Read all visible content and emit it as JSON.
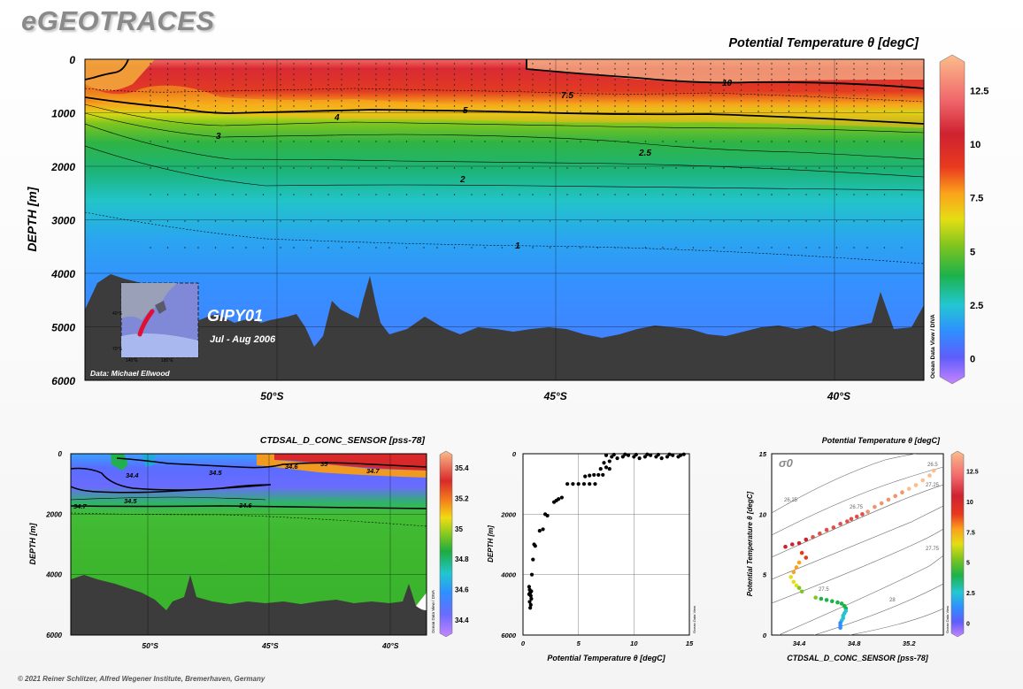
{
  "brand": "eGEOTRACES",
  "credit": "© 2021 Reiner Schlitzer, Alfred Wegener Institute, Bremerhaven, Germany",
  "colors": {
    "bathymetry": "#3c3c3c",
    "contour": "#000000"
  },
  "chart_data": [
    {
      "type": "heatmap",
      "id": "main-section",
      "title": "Potential Temperature θ [degC]",
      "ylabel": "DEPTH [m]",
      "xlabel": "",
      "x_ticks": [
        "50°S",
        "45°S",
        "40°S"
      ],
      "x_tick_values": [
        -50,
        -45,
        -40
      ],
      "xlim": [
        -53.3,
        -38.5
      ],
      "y_ticks": [
        "0",
        "1000",
        "2000",
        "3000",
        "4000",
        "5000",
        "6000"
      ],
      "y_tick_values": [
        0,
        1000,
        2000,
        3000,
        4000,
        5000,
        6000
      ],
      "ylim": [
        0,
        6000
      ],
      "y_reversed": true,
      "colorbar_ticks": [
        "0",
        "2.5",
        "5",
        "7.5",
        "10",
        "12.5"
      ],
      "colorbar_values": [
        0,
        2.5,
        5,
        7.5,
        10,
        12.5
      ],
      "colorbar_range": [
        -1,
        14
      ],
      "contour_labels": [
        "10",
        "7.5",
        "5",
        "4",
        "3",
        "2.5",
        "2",
        "1"
      ],
      "cruise": "GIPY01",
      "period": "Jul - Aug 2006",
      "data_credit": "Data: Michael Ellwood",
      "side_label": "Ocean Data View / DIVA",
      "map_labels": [
        "40°S",
        "70°S",
        "140°E",
        "180°E"
      ]
    },
    {
      "type": "heatmap",
      "id": "salinity-section",
      "title": "CTDSAL_D_CONC_SENSOR [pss-78]",
      "ylabel": "DEPTH [m]",
      "xlabel": "",
      "x_ticks": [
        "50°S",
        "45°S",
        "40°S"
      ],
      "x_tick_values": [
        -50,
        -45,
        -40
      ],
      "xlim": [
        -53.3,
        -38.5
      ],
      "y_ticks": [
        "0",
        "2000",
        "4000",
        "6000"
      ],
      "y_tick_values": [
        0,
        2000,
        4000,
        6000
      ],
      "ylim": [
        0,
        6000
      ],
      "y_reversed": true,
      "colorbar_ticks": [
        "34.4",
        "34.6",
        "34.8",
        "35",
        "35.2",
        "35.4"
      ],
      "colorbar_values": [
        34.4,
        34.6,
        34.8,
        35.0,
        35.2,
        35.4
      ],
      "colorbar_range": [
        34.3,
        35.5
      ],
      "contour_labels": [
        "34.4",
        "34.5",
        "34.5",
        "34.6",
        "35",
        "34.7",
        "34.7",
        "34.6"
      ],
      "side_label": "Ocean Data View / DIVA"
    },
    {
      "type": "scatter",
      "id": "temp-profile",
      "xlabel": "Potential Temperature θ [degC]",
      "ylabel": "DEPTH [m]",
      "x_ticks": [
        "0",
        "5",
        "10",
        "15"
      ],
      "xlim": [
        0,
        15
      ],
      "y_ticks": [
        "0",
        "2000",
        "4000",
        "6000"
      ],
      "ylim": [
        0,
        6000
      ],
      "y_reversed": true,
      "side_label": "Ocean Data View",
      "points": [
        [
          0.55,
          4400
        ],
        [
          0.6,
          4500
        ],
        [
          0.65,
          4600
        ],
        [
          0.7,
          4700
        ],
        [
          0.75,
          4800
        ],
        [
          0.6,
          4900
        ],
        [
          0.7,
          5000
        ],
        [
          0.65,
          5100
        ],
        [
          0.55,
          4650
        ],
        [
          0.75,
          4550
        ],
        [
          0.8,
          4000
        ],
        [
          0.9,
          3500
        ],
        [
          1.0,
          3000
        ],
        [
          1.1,
          3050
        ],
        [
          1.5,
          2550
        ],
        [
          1.8,
          2500
        ],
        [
          2.0,
          2000
        ],
        [
          2.2,
          2050
        ],
        [
          2.8,
          1600
        ],
        [
          3.0,
          1550
        ],
        [
          3.2,
          1500
        ],
        [
          3.5,
          1450
        ],
        [
          4.0,
          1000
        ],
        [
          4.5,
          1000
        ],
        [
          5.0,
          1000
        ],
        [
          5.5,
          1000
        ],
        [
          6.0,
          1000
        ],
        [
          6.5,
          1000
        ],
        [
          5.6,
          750
        ],
        [
          6.0,
          720
        ],
        [
          6.4,
          700
        ],
        [
          6.8,
          700
        ],
        [
          7.2,
          700
        ],
        [
          7.0,
          500
        ],
        [
          7.5,
          450
        ],
        [
          7.8,
          500
        ],
        [
          7.3,
          300
        ],
        [
          7.8,
          250
        ],
        [
          7.5,
          50
        ],
        [
          8.0,
          100
        ],
        [
          8.5,
          150
        ],
        [
          9.0,
          100
        ],
        [
          9.5,
          50
        ],
        [
          10.0,
          100
        ],
        [
          10.5,
          150
        ],
        [
          11.0,
          100
        ],
        [
          11.5,
          50
        ],
        [
          12.0,
          100
        ],
        [
          12.5,
          150
        ],
        [
          13.0,
          100
        ],
        [
          13.5,
          50
        ],
        [
          14.0,
          100
        ],
        [
          14.2,
          50
        ],
        [
          8.2,
          30
        ],
        [
          9.2,
          20
        ],
        [
          10.2,
          30
        ],
        [
          11.2,
          20
        ],
        [
          12.2,
          30
        ],
        [
          13.2,
          20
        ],
        [
          14.5,
          20
        ]
      ]
    },
    {
      "type": "scatter",
      "id": "ts-diagram",
      "title": "Potential Temperature θ [degC]",
      "xlabel": "CTDSAL_D_CONC_SENSOR [pss-78]",
      "ylabel": "Potential Temperature θ [degC]",
      "x_ticks": [
        "34.4",
        "34.8",
        "35.2"
      ],
      "x_tick_values": [
        34.4,
        34.8,
        35.2
      ],
      "xlim": [
        34.2,
        35.45
      ],
      "y_ticks": [
        "0",
        "5",
        "10",
        "15"
      ],
      "y_tick_values": [
        0,
        5,
        10,
        15
      ],
      "ylim": [
        0,
        15
      ],
      "colorbar_ticks": [
        "0",
        "2.5",
        "5",
        "7.5",
        "10",
        "12.5"
      ],
      "colorbar_values": [
        0,
        2.5,
        5,
        7.5,
        10,
        12.5
      ],
      "colorbar_range": [
        -1,
        14
      ],
      "density_symbol": "σ0",
      "density_labels": [
        "26.25",
        "26.75",
        "27.25",
        "27.75",
        "27.5",
        "28",
        "26.5"
      ],
      "side_label": "Ocean Data View",
      "points": [
        [
          34.3,
          7.3
        ],
        [
          34.35,
          7.5
        ],
        [
          34.4,
          7.6
        ],
        [
          34.45,
          7.9
        ],
        [
          34.5,
          8.1
        ],
        [
          34.55,
          8.4
        ],
        [
          34.6,
          8.7
        ],
        [
          34.65,
          8.9
        ],
        [
          34.7,
          9.2
        ],
        [
          34.75,
          9.4
        ],
        [
          34.78,
          9.6
        ],
        [
          34.82,
          9.8
        ],
        [
          34.86,
          10.0
        ],
        [
          34.9,
          10.2
        ],
        [
          34.95,
          10.6
        ],
        [
          35.0,
          10.9
        ],
        [
          35.05,
          11.2
        ],
        [
          35.1,
          11.5
        ],
        [
          35.15,
          11.8
        ],
        [
          35.2,
          12.1
        ],
        [
          35.25,
          12.4
        ],
        [
          35.3,
          12.8
        ],
        [
          35.35,
          13.2
        ],
        [
          35.38,
          13.6
        ],
        [
          34.42,
          6.8
        ],
        [
          34.45,
          6.4
        ],
        [
          34.4,
          6.0
        ],
        [
          34.38,
          5.6
        ],
        [
          34.36,
          5.2
        ],
        [
          34.34,
          4.8
        ],
        [
          34.36,
          4.4
        ],
        [
          34.38,
          4.1
        ],
        [
          34.4,
          3.9
        ],
        [
          34.42,
          3.6
        ],
        [
          34.52,
          3.1
        ],
        [
          34.56,
          3.0
        ],
        [
          34.6,
          2.9
        ],
        [
          34.64,
          2.8
        ],
        [
          34.68,
          2.7
        ],
        [
          34.71,
          2.6
        ],
        [
          34.73,
          2.4
        ],
        [
          34.74,
          2.2
        ],
        [
          34.74,
          2.0
        ],
        [
          34.73,
          1.8
        ],
        [
          34.72,
          1.6
        ],
        [
          34.72,
          1.4
        ],
        [
          34.71,
          1.2
        ],
        [
          34.7,
          1.0
        ],
        [
          34.7,
          0.8
        ],
        [
          34.7,
          0.6
        ]
      ]
    }
  ]
}
